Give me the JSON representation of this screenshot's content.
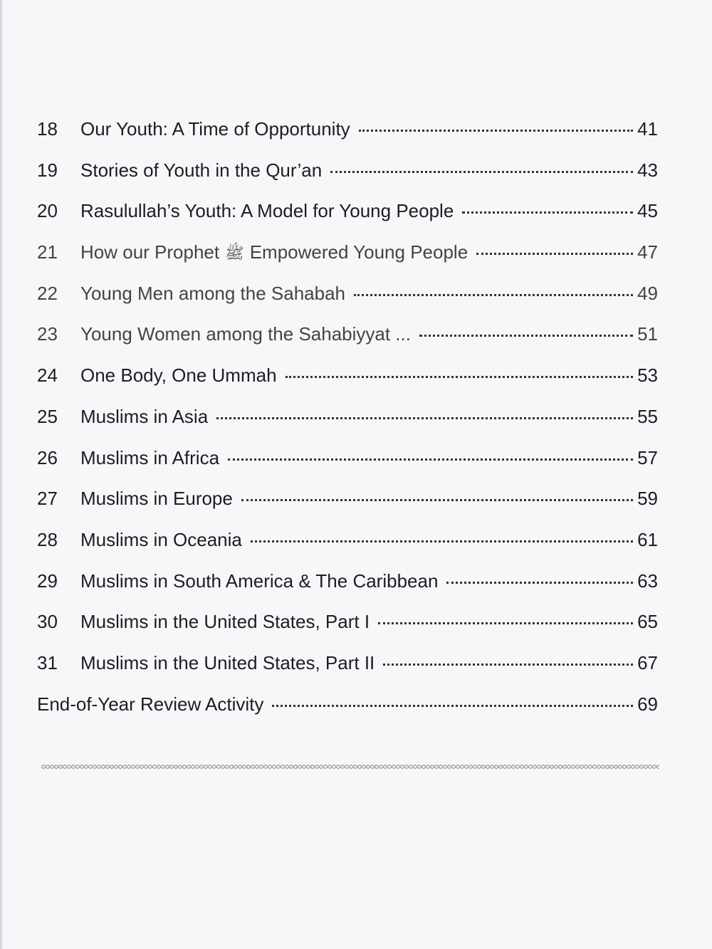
{
  "entries": [
    {
      "num": "18",
      "title": "Our Youth: A Time of Opportunity",
      "page": "41"
    },
    {
      "num": "19",
      "title": "Stories of Youth in the Qur’an",
      "page": "43"
    },
    {
      "num": "20",
      "title": "Rasulullah’s Youth: A Model for Young People",
      "page": "45"
    },
    {
      "num": "21",
      "title_before": "How our Prophet",
      "symbol": "ﷺ",
      "title_after": "Empowered Young People",
      "page": "47"
    },
    {
      "num": "22",
      "title": "Young Men among the Sahabah",
      "page": "49"
    },
    {
      "num": "23",
      "title": "Young Women among the Sahabiyyat ...",
      "page": "51"
    },
    {
      "num": "24",
      "title": "One Body, One Ummah",
      "page": "53"
    },
    {
      "num": "25",
      "title": "Muslims in Asia",
      "page": "55"
    },
    {
      "num": "26",
      "title": "Muslims in Africa",
      "page": "57"
    },
    {
      "num": "27",
      "title": "Muslims in Europe",
      "page": "59"
    },
    {
      "num": "28",
      "title": "Muslims in Oceania",
      "page": "61"
    },
    {
      "num": "29",
      "title": "Muslims in South America & The Caribbean",
      "page": "63"
    },
    {
      "num": "30",
      "title": "Muslims in the United States, Part I",
      "page": "65"
    },
    {
      "num": "31",
      "title": "Muslims in the United States, Part II",
      "page": "67"
    }
  ],
  "final_entry": {
    "title": "End-of-Year Review Activity",
    "page": "69"
  }
}
